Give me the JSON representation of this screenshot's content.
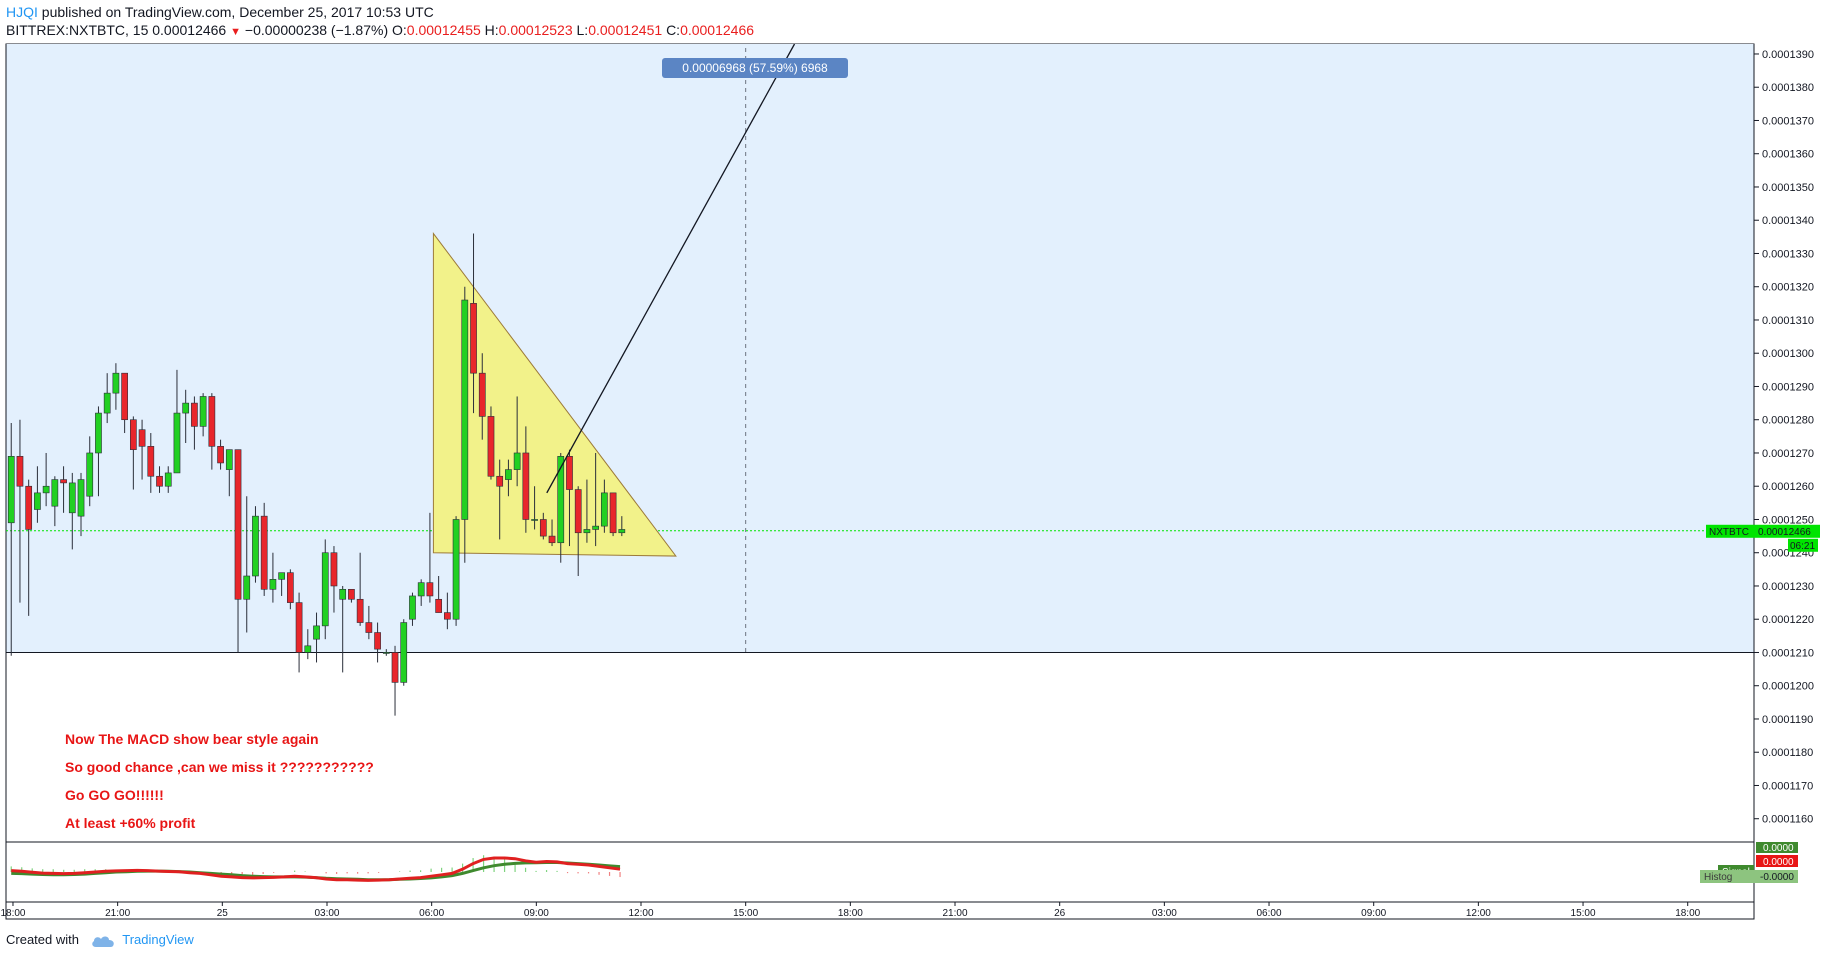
{
  "header": {
    "author": "HJQI",
    "published_text": "published on TradingView.com, December 25, 2017 10:53 UTC",
    "symbol_line": "BITTREX:NXTBTC, 15",
    "last": "0.00012466",
    "change": "−0.00000238 (−1.87%)",
    "o_label": "O:",
    "o_val": "0.00012455",
    "h_label": "H:",
    "h_val": "0.00012523",
    "l_label": "L:",
    "l_val": "0.00012451",
    "c_label": "C:",
    "c_val": "0.00012466"
  },
  "footer": {
    "created_with": "Created with",
    "brand": "TradingView"
  },
  "colors": {
    "up": "#22d022",
    "down": "#e8262b",
    "range_fill": "#e3f0fd",
    "triangle_fill": "#f2f28a",
    "triangle_stroke": "#9c7a3a",
    "last_price": "#00e400",
    "macd": "#e02020",
    "signal": "#3f8a2e"
  },
  "chart_data": {
    "type": "candlestick",
    "symbol": "NXTBTC",
    "interval": "15",
    "price_ticks": [
      "0.0001390",
      "0.0001380",
      "0.0001370",
      "0.0001360",
      "0.0001350",
      "0.0001340",
      "0.0001330",
      "0.0001320",
      "0.0001310",
      "0.0001300",
      "0.0001290",
      "0.0001280",
      "0.0001270",
      "0.0001260",
      "0.0001250",
      "0.0001240",
      "0.0001230",
      "0.0001220",
      "0.0001210",
      "0.0001200",
      "0.0001190",
      "0.0001180",
      "0.0001170",
      "0.0001160"
    ],
    "ylim": [
      0.0001153,
      0.0001393
    ],
    "time_ticks": [
      {
        "label": "18:00",
        "h": -6
      },
      {
        "label": "21:00",
        "h": -3
      },
      {
        "label": "25",
        "h": 0
      },
      {
        "label": "03:00",
        "h": 3
      },
      {
        "label": "06:00",
        "h": 6
      },
      {
        "label": "09:00",
        "h": 9
      },
      {
        "label": "12:00",
        "h": 12
      },
      {
        "label": "15:00",
        "h": 15
      },
      {
        "label": "18:00",
        "h": 18
      },
      {
        "label": "21:00",
        "h": 21
      },
      {
        "label": "26",
        "h": 24
      },
      {
        "label": "03:00",
        "h": 27
      },
      {
        "label": "06:00",
        "h": 30
      },
      {
        "label": "09:00",
        "h": 33
      },
      {
        "label": "12:00",
        "h": 36
      },
      {
        "label": "15:00",
        "h": 39
      },
      {
        "label": "18:00",
        "h": 42
      }
    ],
    "xlim_hours": [
      -6.2,
      43.9
    ],
    "candles": [
      [
        0.0001249,
        0.0001279,
        0.0001209,
        0.0001269
      ],
      [
        0.0001269,
        0.000128,
        0.0001225,
        0.000126
      ],
      [
        0.000126,
        0.0001262,
        0.0001221,
        0.0001247
      ],
      [
        0.0001253,
        0.0001266,
        0.0001249,
        0.0001258
      ],
      [
        0.0001258,
        0.000127,
        0.0001254,
        0.000126
      ],
      [
        0.0001254,
        0.0001263,
        0.0001248,
        0.0001262
      ],
      [
        0.0001262,
        0.0001266,
        0.0001252,
        0.0001261
      ],
      [
        0.0001252,
        0.0001264,
        0.0001241,
        0.0001261
      ],
      [
        0.0001251,
        0.0001264,
        0.0001245,
        0.0001262
      ],
      [
        0.0001257,
        0.0001275,
        0.0001254,
        0.000127
      ],
      [
        0.000127,
        0.0001284,
        0.0001257,
        0.0001282
      ],
      [
        0.0001282,
        0.0001294,
        0.0001279,
        0.0001288
      ],
      [
        0.0001288,
        0.0001297,
        0.0001283,
        0.0001294
      ],
      [
        0.0001294,
        0.0001294,
        0.0001276,
        0.000128
      ],
      [
        0.000128,
        0.0001281,
        0.0001259,
        0.0001271
      ],
      [
        0.0001277,
        0.000128,
        0.0001262,
        0.0001272
      ],
      [
        0.0001272,
        0.0001276,
        0.0001258,
        0.0001263
      ],
      [
        0.0001263,
        0.0001266,
        0.0001258,
        0.000126
      ],
      [
        0.000126,
        0.0001266,
        0.0001258,
        0.0001264
      ],
      [
        0.0001264,
        0.0001295,
        0.0001264,
        0.0001282
      ],
      [
        0.0001282,
        0.0001289,
        0.0001273,
        0.0001285
      ],
      [
        0.0001285,
        0.0001287,
        0.0001271,
        0.0001278
      ],
      [
        0.0001278,
        0.0001288,
        0.0001275,
        0.0001287
      ],
      [
        0.0001287,
        0.0001288,
        0.0001265,
        0.0001272
      ],
      [
        0.0001272,
        0.0001274,
        0.0001265,
        0.0001267
      ],
      [
        0.0001265,
        0.0001271,
        0.0001257,
        0.0001271
      ],
      [
        0.0001271,
        0.0001271,
        0.000121,
        0.0001226
      ],
      [
        0.0001226,
        0.0001257,
        0.0001216,
        0.0001233
      ],
      [
        0.0001233,
        0.0001254,
        0.0001231,
        0.0001251
      ],
      [
        0.0001251,
        0.0001255,
        0.0001227,
        0.0001229
      ],
      [
        0.0001229,
        0.000124,
        0.0001225,
        0.0001232
      ],
      [
        0.0001232,
        0.0001234,
        0.0001227,
        0.0001234
      ],
      [
        0.0001234,
        0.0001235,
        0.0001223,
        0.0001225
      ],
      [
        0.0001225,
        0.0001228,
        0.0001204,
        0.000121
      ],
      [
        0.000121,
        0.0001217,
        0.0001208,
        0.0001212
      ],
      [
        0.0001214,
        0.0001222,
        0.0001207,
        0.0001218
      ],
      [
        0.0001218,
        0.0001244,
        0.0001214,
        0.000124
      ],
      [
        0.000124,
        0.0001242,
        0.0001222,
        0.000123
      ],
      [
        0.0001226,
        0.000123,
        0.0001204,
        0.0001229
      ],
      [
        0.0001229,
        0.0001229,
        0.0001225,
        0.0001226
      ],
      [
        0.0001226,
        0.000124,
        0.0001218,
        0.0001219
      ],
      [
        0.0001219,
        0.0001224,
        0.0001214,
        0.0001216
      ],
      [
        0.0001216,
        0.0001219,
        0.0001207,
        0.0001211
      ],
      [
        0.000121,
        0.0001211,
        0.0001209,
        0.000121
      ],
      [
        0.000121,
        0.0001212,
        0.0001191,
        0.0001201
      ],
      [
        0.0001201,
        0.000122,
        0.00012,
        0.0001219
      ],
      [
        0.000122,
        0.0001228,
        0.0001218,
        0.0001227
      ],
      [
        0.0001227,
        0.0001232,
        0.0001224,
        0.0001231
      ],
      [
        0.0001231,
        0.0001252,
        0.0001225,
        0.0001227
      ],
      [
        0.0001226,
        0.0001233,
        0.0001222,
        0.0001222
      ],
      [
        0.0001222,
        0.0001228,
        0.0001217,
        0.000122
      ],
      [
        0.000122,
        0.0001251,
        0.0001218,
        0.000125
      ],
      [
        0.000125,
        0.000132,
        0.0001237,
        0.0001316
      ],
      [
        0.0001315,
        0.0001336,
        0.0001282,
        0.0001294
      ],
      [
        0.0001294,
        0.00013,
        0.0001274,
        0.0001281
      ],
      [
        0.0001281,
        0.0001284,
        0.0001262,
        0.0001263
      ],
      [
        0.0001263,
        0.0001268,
        0.0001244,
        0.000126
      ],
      [
        0.0001262,
        0.0001268,
        0.0001257,
        0.0001265
      ],
      [
        0.0001265,
        0.0001287,
        0.000126,
        0.000127
      ],
      [
        0.000127,
        0.0001278,
        0.0001246,
        0.000125
      ],
      [
        0.000125,
        0.000126,
        0.0001247,
        0.000125
      ],
      [
        0.000125,
        0.0001252,
        0.0001244,
        0.0001245
      ],
      [
        0.0001245,
        0.000125,
        0.0001242,
        0.0001243
      ],
      [
        0.0001243,
        0.000127,
        0.0001237,
        0.0001269
      ],
      [
        0.0001269,
        0.0001271,
        0.0001242,
        0.0001259
      ],
      [
        0.0001259,
        0.000126,
        0.0001233,
        0.0001246
      ],
      [
        0.0001246,
        0.0001262,
        0.0001243,
        0.0001247
      ],
      [
        0.0001247,
        0.000127,
        0.0001242,
        0.0001248
      ],
      [
        0.0001248,
        0.0001262,
        0.0001246,
        0.0001258
      ],
      [
        0.0001258,
        0.0001258,
        0.0001245,
        0.0001246
      ],
      [
        0.0001246,
        0.0001251,
        0.0001245,
        0.0001247
      ]
    ],
    "last_price": 0.00012466,
    "price_label": "NXTBTC",
    "price_value_label": "0.00012466",
    "countdown_label": "06:21",
    "range_top": 0.0001394,
    "range_bottom": 0.000121,
    "range_vline_h": 15,
    "triangle": [
      [
        6.05,
        0.0001336
      ],
      [
        6.05,
        0.000124
      ],
      [
        13.0,
        0.0001239
      ]
    ],
    "trend_line": [
      [
        9.3,
        0.0001258
      ],
      [
        16.4,
        0.0001394
      ]
    ],
    "measure_label": "0.00006968 (57.59%) 6968",
    "annotations": [
      "Now The MACD show bear style again",
      "So good chance ,can we miss it ???????????",
      "Go GO GO!!!!!!",
      "At least +60% profit"
    ],
    "macd_panel": {
      "macd_label": "0.0000",
      "zero_label": "0.0000",
      "signal_label": "Signal",
      "histogram_label": "Histog",
      "histogram_value_label": "-0.0000",
      "macd_line": [
        0.1,
        0.05,
        -0.02,
        -0.08,
        -0.1,
        -0.12,
        -0.1,
        -0.05,
        0.0,
        0.05,
        0.08,
        0.1,
        0.12,
        0.1,
        0.06,
        0.04,
        0.02,
        -0.05,
        -0.1,
        -0.2,
        -0.3,
        -0.35,
        -0.4,
        -0.42,
        -0.4,
        -0.38,
        -0.35,
        -0.3,
        -0.35,
        -0.4,
        -0.5,
        -0.55,
        -0.55,
        -0.58,
        -0.6,
        -0.58,
        -0.55,
        -0.5,
        -0.45,
        -0.4,
        -0.3,
        -0.2,
        -0.1,
        0.2,
        0.6,
        0.9,
        1.0,
        1.0,
        0.95,
        0.8,
        0.7,
        0.75,
        0.72,
        0.6,
        0.55,
        0.5,
        0.4,
        0.3,
        0.2
      ],
      "signal_line": [
        -0.1,
        -0.12,
        -0.15,
        -0.18,
        -0.2,
        -0.2,
        -0.18,
        -0.15,
        -0.1,
        -0.05,
        0.0,
        0.02,
        0.05,
        0.06,
        0.06,
        0.05,
        0.03,
        0.0,
        -0.05,
        -0.1,
        -0.15,
        -0.2,
        -0.26,
        -0.3,
        -0.33,
        -0.35,
        -0.35,
        -0.35,
        -0.37,
        -0.4,
        -0.45,
        -0.48,
        -0.5,
        -0.52,
        -0.55,
        -0.55,
        -0.55,
        -0.52,
        -0.5,
        -0.46,
        -0.42,
        -0.35,
        -0.26,
        -0.1,
        0.1,
        0.3,
        0.45,
        0.55,
        0.62,
        0.65,
        0.66,
        0.68,
        0.68,
        0.64,
        0.6,
        0.55,
        0.5,
        0.44,
        0.38
      ]
    }
  }
}
